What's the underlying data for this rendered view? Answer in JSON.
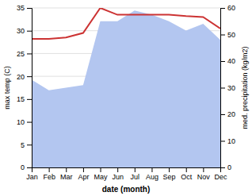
{
  "chart_data": {
    "type": "line",
    "categories": [
      "Jan",
      "Feb",
      "Mar",
      "Apr",
      "May",
      "Jun",
      "Jul",
      "Aug",
      "Sep",
      "Oct",
      "Nov",
      "Dec"
    ],
    "xlabel": "date (month)",
    "ylabel": "max temp (C)",
    "y2label": "med. precipitation (kg/m2)",
    "series": [
      {
        "type": "area",
        "axis": "y2",
        "color": "#b3c6f0",
        "values": [
          33.0,
          29.0,
          30.0,
          31.0,
          55.0,
          55.0,
          59.0,
          57.5,
          55.0,
          51.5,
          54.0,
          48.0
        ]
      },
      {
        "type": "line",
        "color": "#cc3333",
        "values": [
          28.2,
          28.2,
          28.5,
          29.5,
          35.0,
          33.5,
          33.5,
          33.5,
          33.5,
          33.2,
          33.0,
          30.5
        ]
      }
    ],
    "ylim": [
      0,
      35
    ],
    "yticks": [
      0,
      5,
      10,
      15,
      20,
      25,
      30,
      35
    ],
    "y2lim": [
      0,
      60
    ],
    "y2ticks": [
      0,
      10,
      20,
      30,
      40,
      50,
      60
    ],
    "grid": true
  }
}
